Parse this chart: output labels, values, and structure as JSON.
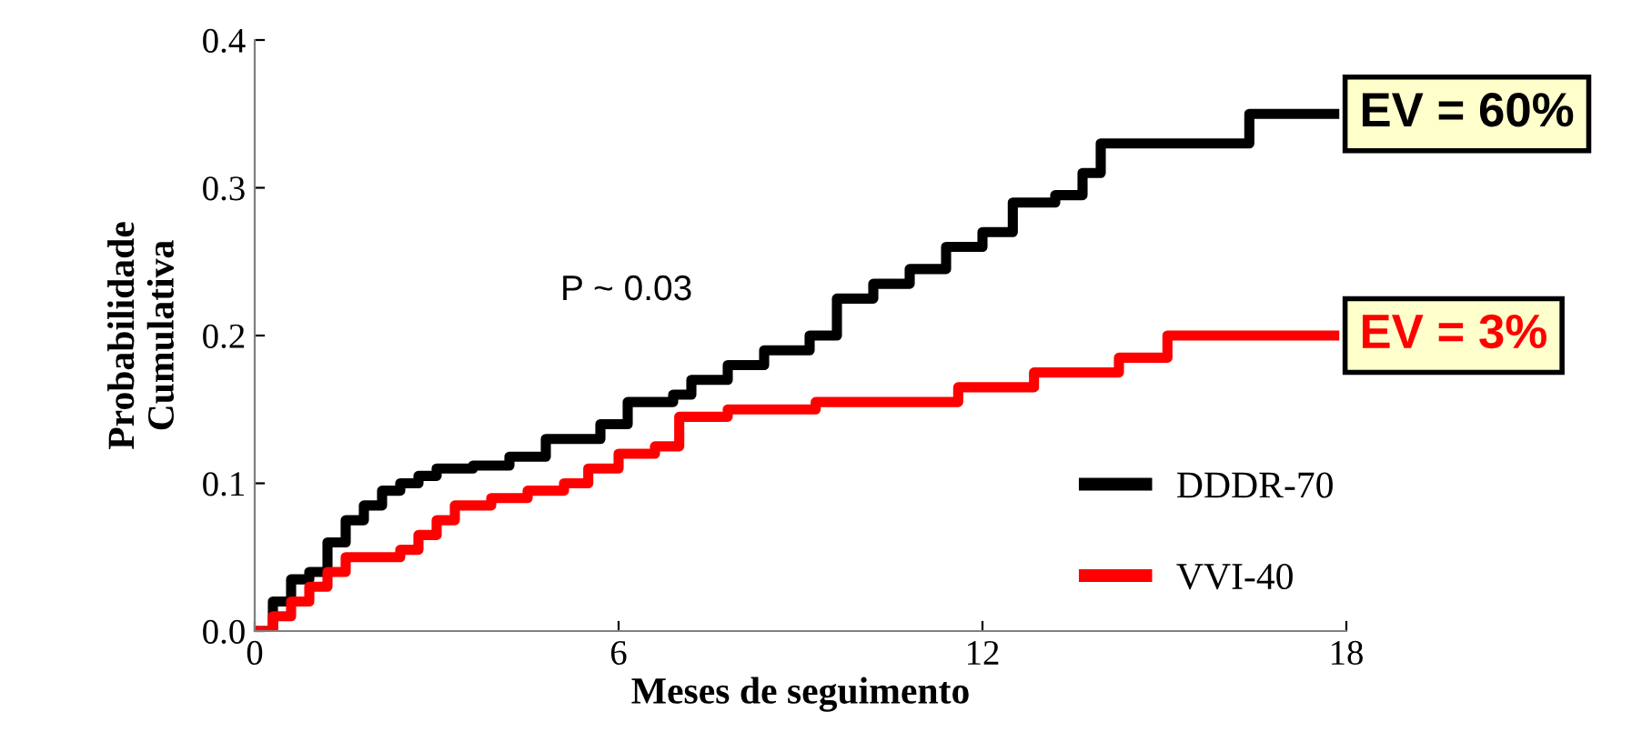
{
  "chart_data": {
    "type": "step",
    "xlabel": "Meses de seguimento",
    "ylabel": "Probabilidade\nCumulativa",
    "xlim": [
      0,
      18
    ],
    "ylim": [
      0,
      0.4
    ],
    "xticks": [
      0,
      6,
      12,
      18
    ],
    "yticks": [
      {
        "value": 0,
        "label": "0.0"
      },
      {
        "value": 0.1,
        "label": "0.1"
      },
      {
        "value": 0.2,
        "label": "0.2"
      },
      {
        "value": 0.3,
        "label": "0.3"
      },
      {
        "value": 0.4,
        "label": "0.4"
      }
    ],
    "grid": false,
    "legend": "bottom right",
    "marker": "none",
    "line_style": "solid",
    "series": [
      {
        "name": "DDDR-70",
        "color": "#000000",
        "x": [
          0,
          0.3,
          0.6,
          0.9,
          1.2,
          1.5,
          1.8,
          2.1,
          2.4,
          2.7,
          3.0,
          3.6,
          4.2,
          4.8,
          5.7,
          6.15,
          6.9,
          7.2,
          7.8,
          8.4,
          9.15,
          9.6,
          10.2,
          10.8,
          11.4,
          12.0,
          12.5,
          13.2,
          13.65,
          13.95,
          16.4,
          17.8
        ],
        "values": [
          0,
          0.02,
          0.035,
          0.04,
          0.06,
          0.075,
          0.085,
          0.095,
          0.1,
          0.105,
          0.11,
          0.112,
          0.118,
          0.13,
          0.14,
          0.155,
          0.16,
          0.17,
          0.18,
          0.19,
          0.2,
          0.225,
          0.235,
          0.245,
          0.26,
          0.27,
          0.29,
          0.295,
          0.31,
          0.33,
          0.35,
          0.35
        ]
      },
      {
        "name": "VVI-40",
        "color": "#ff0000",
        "x": [
          0,
          0.3,
          0.6,
          0.9,
          1.2,
          1.5,
          2.4,
          2.7,
          3.0,
          3.3,
          3.9,
          4.5,
          5.1,
          5.5,
          6.0,
          6.6,
          7.0,
          7.8,
          9.25,
          11.6,
          12.85,
          14.25,
          15.05,
          17.8
        ],
        "values": [
          0,
          0.01,
          0.02,
          0.03,
          0.04,
          0.05,
          0.055,
          0.065,
          0.075,
          0.085,
          0.09,
          0.095,
          0.1,
          0.11,
          0.12,
          0.125,
          0.145,
          0.15,
          0.155,
          0.165,
          0.175,
          0.185,
          0.2,
          0.2
        ]
      }
    ],
    "annotations": [
      "P ~ 0.03",
      {
        "text": "EV = 60%",
        "x": 17.8,
        "y": 0.35
      },
      {
        "text": "EV = 3%",
        "x": 17.8,
        "y": 0.2
      }
    ]
  }
}
